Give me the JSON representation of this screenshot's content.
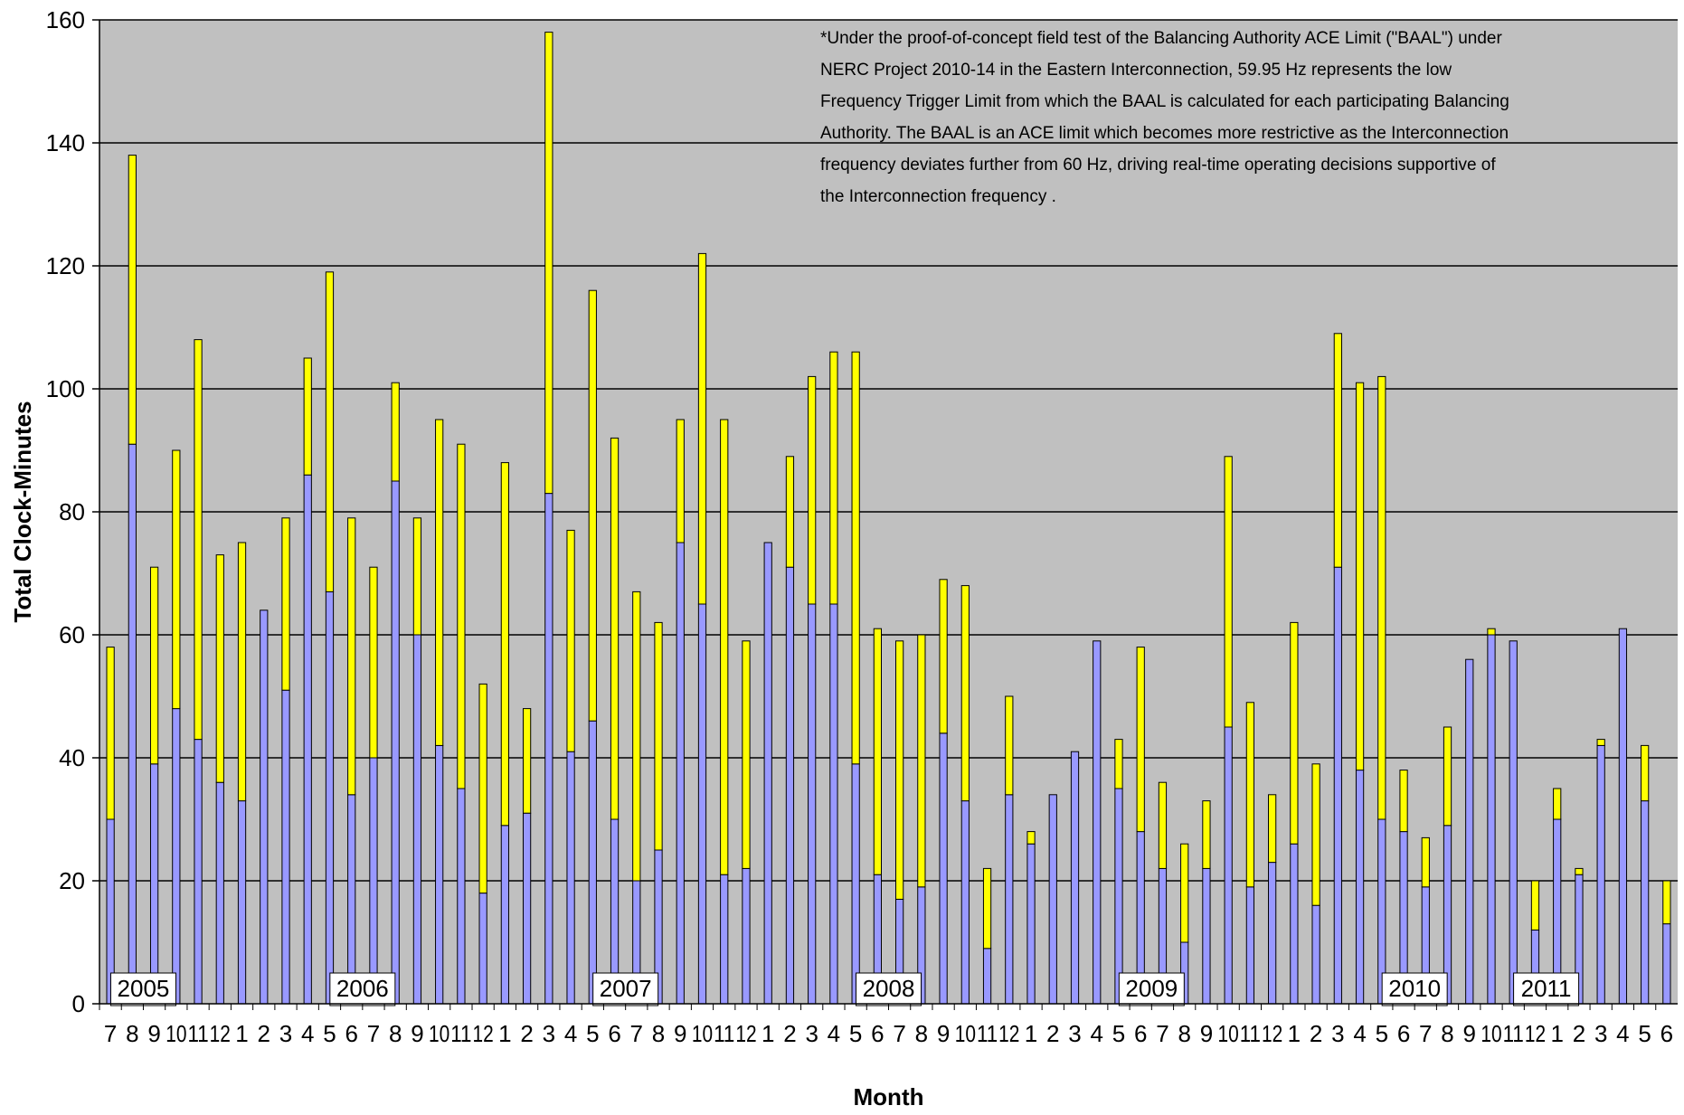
{
  "chart_data": {
    "type": "bar",
    "stacked": true,
    "xlabel": "Month",
    "ylabel": "Total Clock-Minutes",
    "ylim": [
      0,
      160
    ],
    "yticks": [
      0,
      20,
      40,
      60,
      80,
      100,
      120,
      140,
      160
    ],
    "grid": true,
    "legend": "none",
    "colors": {
      "series_lower": "#9999ff",
      "series_upper": "#ffff00",
      "plot_background": "#c0c0c0",
      "grid": "#000000"
    },
    "categories": [
      "7",
      "8",
      "9",
      "10",
      "11",
      "12",
      "1",
      "2",
      "3",
      "4",
      "5",
      "6",
      "7",
      "8",
      "9",
      "10",
      "11",
      "12",
      "1",
      "2",
      "3",
      "4",
      "5",
      "6",
      "7",
      "8",
      "9",
      "10",
      "11",
      "12",
      "1",
      "2",
      "3",
      "4",
      "5",
      "6",
      "7",
      "8",
      "9",
      "10",
      "11",
      "12",
      "1",
      "2",
      "3",
      "4",
      "5",
      "6",
      "7",
      "8",
      "9",
      "10",
      "11",
      "12",
      "1",
      "2",
      "3",
      "4",
      "5",
      "6",
      "7",
      "8",
      "9",
      "10",
      "11",
      "12",
      "1",
      "2",
      "3",
      "4",
      "5",
      "6"
    ],
    "category_labels": [
      "7",
      "8",
      "9",
      "10",
      "11",
      "12",
      "1",
      "2",
      "3",
      "4",
      "5",
      "6",
      "7",
      "8",
      "9",
      "10",
      "11",
      "12",
      "1",
      "2",
      "3",
      "4",
      "5",
      "6",
      "7",
      "8",
      "9",
      "10",
      "11",
      "12",
      "1",
      "2",
      "3",
      "4",
      "5",
      "6",
      "7",
      "8",
      "9",
      "10",
      "11",
      "12",
      "1",
      "2",
      "3",
      "4",
      "5",
      "6",
      "7",
      "8",
      "9",
      "10",
      "11",
      "12",
      "1",
      "2",
      "3",
      "4",
      "5",
      "6",
      "7",
      "8",
      "9",
      "10",
      "11",
      "12",
      "1",
      "2",
      "3",
      "4",
      "5",
      "6"
    ],
    "series": [
      {
        "values": [
          30,
          91,
          39,
          48,
          43,
          36,
          33,
          64,
          51,
          86,
          67,
          34,
          40,
          85,
          60,
          42,
          35,
          18,
          29,
          31,
          83,
          41,
          46,
          30,
          20,
          25,
          75,
          65,
          21,
          22,
          75,
          71,
          65,
          65,
          39,
          21,
          17,
          19,
          44,
          33,
          9,
          34,
          26,
          34,
          41,
          59,
          35,
          28,
          22,
          10,
          22,
          45,
          19,
          23,
          26,
          16,
          71,
          38,
          30,
          28,
          19,
          29,
          56,
          60,
          59,
          12,
          30,
          21,
          42,
          61,
          33,
          13
        ]
      },
      {
        "values": [
          28,
          47,
          32,
          42,
          65,
          37,
          42,
          0,
          28,
          19,
          52,
          45,
          31,
          16,
          19,
          53,
          56,
          34,
          59,
          17,
          75,
          36,
          70,
          62,
          47,
          37,
          20,
          57,
          74,
          37,
          0,
          18,
          37,
          41,
          67,
          40,
          42,
          41,
          25,
          35,
          13,
          16,
          2,
          0,
          0,
          0,
          8,
          30,
          14,
          16,
          11,
          44,
          30,
          11,
          36,
          23,
          38,
          63,
          72,
          10,
          8,
          16,
          0,
          1,
          0,
          8,
          5,
          1,
          1,
          0,
          9,
          7
        ]
      }
    ],
    "year_labels": [
      {
        "text": "2005",
        "after_category_index": 1
      },
      {
        "text": "2006",
        "after_category_index": 11
      },
      {
        "text": "2007",
        "after_category_index": 23
      },
      {
        "text": "2008",
        "after_category_index": 35
      },
      {
        "text": "2009",
        "after_category_index": 47
      },
      {
        "text": "2010",
        "after_category_index": 59
      },
      {
        "text": "2011",
        "after_category_index": 65
      }
    ],
    "annotation_lines": [
      "*Under the proof-of-concept field test of the Balancing Authority ACE Limit (\"BAAL\") under",
      "NERC Project 2010-14 in the Eastern Interconnection, 59.95 Hz represents the low",
      "Frequency Trigger Limit from which the BAAL is calculated for each participating Balancing",
      "Authority.  The BAAL is an ACE limit which becomes more restrictive as the Interconnection",
      "frequency deviates further from 60 Hz, driving real-time operating decisions supportive of",
      "the Interconnection frequency ."
    ]
  }
}
